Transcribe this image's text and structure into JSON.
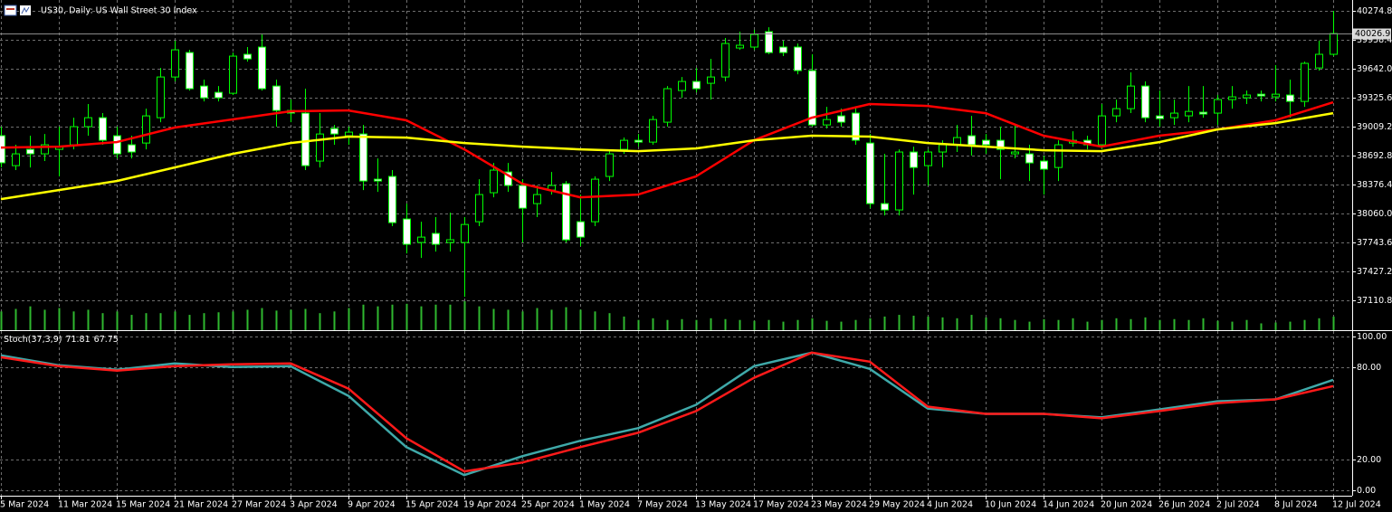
{
  "chart_data": [
    {
      "type": "candlestick",
      "title": "US30, Daily: US Wall Street 30 Index",
      "categories": [
        "5 Mar 2024",
        null,
        null,
        null,
        "11 Mar 2024",
        null,
        null,
        null,
        "15 Mar 2024",
        null,
        null,
        null,
        "21 Mar 2024",
        null,
        null,
        null,
        "27 Mar 2024",
        null,
        null,
        null,
        "3 Apr 2024",
        null,
        null,
        null,
        "9 Apr 2024",
        null,
        null,
        null,
        "15 Apr 2024",
        null,
        null,
        null,
        "19 Apr 2024",
        null,
        null,
        null,
        "25 Apr 2024",
        null,
        null,
        null,
        "1 May 2024",
        null,
        null,
        null,
        "7 May 2024",
        null,
        null,
        null,
        "13 May 2024",
        null,
        null,
        null,
        "17 May 2024",
        null,
        null,
        null,
        "23 May 2024",
        null,
        null,
        null,
        "29 May 2024",
        null,
        null,
        null,
        "4 Jun 2024",
        null,
        null,
        null,
        "10 Jun 2024",
        null,
        null,
        null,
        "14 Jun 2024",
        null,
        null,
        null,
        "20 Jun 2024",
        null,
        null,
        null,
        "26 Jun 2024",
        null,
        null,
        null,
        "2 Jul 2024",
        null,
        null,
        null,
        "8 Jul 2024",
        null,
        null,
        null,
        "12 Jul 2024"
      ],
      "open": [
        38911,
        38583,
        38761,
        38712,
        38761,
        38811,
        39009,
        39107,
        38910,
        38811,
        38830,
        39107,
        39552,
        39819,
        39453,
        39384,
        39374,
        39800,
        39879,
        39453,
        39186,
        39157,
        38633,
        38989,
        38910,
        38929,
        38435,
        38465,
        38000,
        37743,
        37842,
        37743,
        37743,
        37970,
        38287,
        38514,
        38366,
        38168,
        38316,
        38385,
        37970,
        37970,
        38465,
        38761,
        38860,
        38840,
        39058,
        39404,
        39503,
        39483,
        39552,
        39869,
        39879,
        40047,
        39879,
        39879,
        39622,
        39028,
        39127,
        39157,
        38830,
        38168,
        38099,
        38732,
        38583,
        38732,
        38811,
        38910,
        38860,
        38860,
        38712,
        38712,
        38633,
        38563,
        38830,
        38860,
        38811,
        39127,
        39206,
        39453,
        39127,
        39107,
        39127,
        39167,
        39157,
        39305,
        39325,
        39364,
        39335,
        39355,
        39285,
        39651,
        39800
      ],
      "high": [
        39009,
        38811,
        38910,
        38929,
        39009,
        39107,
        39256,
        39157,
        39009,
        38910,
        39206,
        39651,
        39948,
        39849,
        39523,
        39453,
        39819,
        39879,
        40017,
        39523,
        39305,
        39424,
        39157,
        39028,
        39009,
        39028,
        38662,
        38534,
        38168,
        37970,
        38020,
        38069,
        38020,
        38435,
        38613,
        38613,
        38435,
        38366,
        38514,
        38415,
        38267,
        38465,
        38761,
        38890,
        38929,
        39127,
        39453,
        39552,
        39651,
        39750,
        39978,
        40047,
        40067,
        40096,
        39948,
        39918,
        39800,
        39226,
        39206,
        39226,
        38929,
        38712,
        38761,
        38791,
        38761,
        38860,
        39028,
        39127,
        38929,
        39009,
        39028,
        38811,
        38693,
        38860,
        38959,
        38910,
        39256,
        39305,
        39602,
        39503,
        39404,
        39305,
        39453,
        39453,
        39355,
        39453,
        39404,
        39404,
        39681,
        39523,
        39720,
        39948,
        40275
      ],
      "low": [
        38564,
        38534,
        38563,
        38633,
        38465,
        38761,
        38910,
        38811,
        38662,
        38662,
        38761,
        39058,
        39503,
        39404,
        39285,
        39285,
        39355,
        39720,
        39404,
        39009,
        39058,
        38534,
        38563,
        38811,
        38811,
        38316,
        38296,
        37921,
        37624,
        37574,
        37644,
        37644,
        37149,
        37921,
        38237,
        38296,
        37743,
        38020,
        38267,
        37743,
        37703,
        37921,
        38415,
        38712,
        38791,
        38811,
        39009,
        39325,
        39384,
        39305,
        39503,
        39849,
        39849,
        39800,
        39780,
        39582,
        39009,
        38989,
        39009,
        38811,
        38118,
        38039,
        38039,
        38267,
        38366,
        38563,
        38732,
        38693,
        38712,
        38435,
        38662,
        38415,
        38267,
        38415,
        38791,
        38761,
        38761,
        39058,
        39157,
        39058,
        39009,
        39028,
        39058,
        39107,
        39028,
        39206,
        39256,
        39285,
        39285,
        39107,
        39226,
        39622,
        39780
      ],
      "close": [
        38614,
        38712,
        38712,
        38811,
        38791,
        39009,
        39107,
        38860,
        38712,
        38732,
        39127,
        39552,
        39849,
        39424,
        39325,
        39325,
        39780,
        39750,
        39424,
        39186,
        39157,
        38583,
        38929,
        38929,
        38949,
        38415,
        38415,
        37960,
        37723,
        37802,
        37723,
        37773,
        37940,
        38267,
        38534,
        38366,
        38118,
        38267,
        38366,
        37772,
        37802,
        38435,
        38712,
        38860,
        38840,
        39087,
        39424,
        39503,
        39424,
        39552,
        39918,
        39899,
        40017,
        39819,
        39819,
        39622,
        39028,
        39087,
        39058,
        38860,
        38168,
        38099,
        38732,
        38563,
        38732,
        38811,
        38890,
        38811,
        38811,
        38761,
        38732,
        38613,
        38544,
        38811,
        38860,
        38811,
        39127,
        39206,
        39453,
        39107,
        39097,
        39157,
        39176,
        39147,
        39305,
        39335,
        39355,
        39345,
        39364,
        39285,
        39701,
        39800,
        40026.9
      ],
      "volume": [
        22,
        25,
        28,
        24,
        26,
        22,
        24,
        20,
        22,
        18,
        20,
        20,
        22,
        18,
        20,
        21,
        22,
        24,
        26,
        23,
        24,
        25,
        20,
        22,
        26,
        30,
        28,
        30,
        31,
        28,
        30,
        30,
        34,
        28,
        25,
        24,
        22,
        26,
        24,
        27,
        24,
        22,
        20,
        16,
        12,
        14,
        12,
        13,
        12,
        14,
        13,
        12,
        11,
        12,
        10,
        12,
        14,
        11,
        10,
        12,
        14,
        16,
        18,
        17,
        16,
        15,
        14,
        18,
        15,
        14,
        12,
        10,
        13,
        12,
        14,
        10,
        12,
        14,
        13,
        15,
        12,
        13,
        12,
        14,
        11,
        10,
        12,
        8,
        9,
        10,
        12,
        14,
        16
      ],
      "up_color": "#000000",
      "down_color": "#ffffff",
      "wick_color": "#00ff00",
      "volume_color": "#2fb82f",
      "ma_lines": [
        {
          "color": "#ff0000",
          "x": [
            0,
            4,
            8,
            12,
            16,
            20,
            24,
            28,
            32,
            36,
            40,
            44,
            48,
            52,
            56,
            60,
            64,
            68,
            72,
            76,
            80,
            84,
            88,
            92
          ],
          "values": [
            38781,
            38791,
            38840,
            38999,
            39088,
            39177,
            39186,
            39078,
            38761,
            38385,
            38237,
            38267,
            38465,
            38860,
            39107,
            39256,
            39236,
            39157,
            38910,
            38791,
            38910,
            38979,
            39078,
            39275
          ]
        },
        {
          "color": "#ffff00",
          "x": [
            0,
            4,
            8,
            12,
            16,
            20,
            24,
            28,
            32,
            36,
            40,
            44,
            48,
            52,
            56,
            60,
            64,
            68,
            72,
            76,
            80,
            84,
            88,
            92
          ],
          "values": [
            38217,
            38316,
            38415,
            38563,
            38712,
            38830,
            38900,
            38890,
            38830,
            38791,
            38761,
            38741,
            38771,
            38860,
            38910,
            38900,
            38830,
            38791,
            38751,
            38741,
            38840,
            38979,
            39048,
            39157
          ]
        }
      ],
      "ylim": [
        36784.5,
        40393.5
      ],
      "yticks": [
        40274.8,
        39958.4,
        {
          "value": 39642,
          "label": "39642.0"
        },
        39325.6,
        39009.2,
        38692.8,
        38376.4,
        {
          "value": 38060,
          "label": "38060.0"
        },
        37743.6,
        37427.2,
        37110.8
      ],
      "grid": true
    },
    {
      "type": "line",
      "title": "Stoch(37,3,9)",
      "x": [
        0,
        4,
        8,
        12,
        16,
        20,
        24,
        28,
        32,
        36,
        40,
        44,
        48,
        52,
        56,
        60,
        64,
        68,
        72,
        76,
        80,
        84,
        88,
        92
      ],
      "series": [
        {
          "color": "#3fa9a9",
          "values": [
            87.7,
            81.3,
            78.4,
            82.5,
            80.1,
            80.7,
            61.4,
            28.1,
            9.9,
            22.2,
            32.2,
            40.4,
            55.6,
            80.7,
            89.5,
            78.9,
            53.2,
            49.7,
            49.7,
            47.4,
            52.6,
            57.9,
            59.1,
            71.81
          ]
        },
        {
          "color": "#ff1a1a",
          "values": [
            86.5,
            80.7,
            77.8,
            80.7,
            81.9,
            82.5,
            66.1,
            33.9,
            12.3,
            18.1,
            28.1,
            37.4,
            51.5,
            73.1,
            89.5,
            83.6,
            54.4,
            49.7,
            49.7,
            46.8,
            51.5,
            56.7,
            59.1,
            67.75
          ]
        }
      ],
      "ylim": [
        -3.5,
        103.5
      ],
      "yticks": [
        {
          "value": 100,
          "label": "100.00"
        },
        {
          "value": 80,
          "label": "80.00"
        },
        {
          "value": 20,
          "label": "20.00"
        },
        {
          "value": 0,
          "label": "0.00"
        }
      ],
      "grid": true
    }
  ]
}
